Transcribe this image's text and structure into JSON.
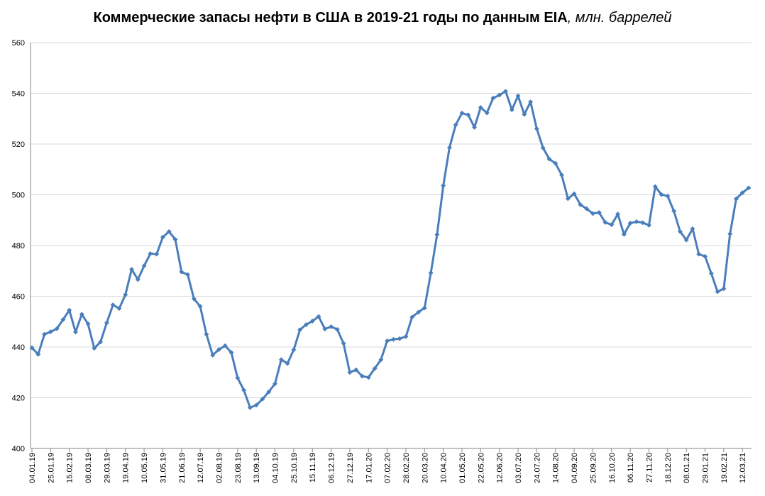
{
  "colors": {
    "series": "#4A7EBB",
    "grid": "#D9D9D9",
    "axis": "#868686"
  },
  "chart_data": {
    "type": "line",
    "title": "Коммерческие запасы нефти в США в 2019-21 годы по данным EIA",
    "title_unit": ", млн. баррелей",
    "xlabel": "",
    "ylabel": "",
    "ylim": [
      400,
      560
    ],
    "yticks": [
      400,
      420,
      440,
      460,
      480,
      500,
      520,
      540,
      560
    ],
    "grid": true,
    "legend": "none",
    "xtick_labels": [
      "04.01.19",
      "25.01.19",
      "15.02.19",
      "08.03.19",
      "29.03.19",
      "19.04.19",
      "10.05.19",
      "31.05.19",
      "21.06.19",
      "12.07.19",
      "02.08.19",
      "23.08.19",
      "13.09.19",
      "04.10.19",
      "25.10.19",
      "15.11.19",
      "06.12.19",
      "27.12.19",
      "17.01.20",
      "07.02.20",
      "28.02.20",
      "20.03.20",
      "10.04.20",
      "01.05.20",
      "22.05.20",
      "12.06.20",
      "03.07.20",
      "24.07.20",
      "14.08.20",
      "04.09.20",
      "25.09.20",
      "16.10.20",
      "06.11.20",
      "27.11.20",
      "18.12.20",
      "08.01.21",
      "29.01.21",
      "19.02.21",
      "12.03.21"
    ],
    "xtick_step": 3,
    "series": [
      {
        "values": [
          439.7,
          437.1,
          445.0,
          446.0,
          447.2,
          450.8,
          454.5,
          445.9,
          452.9,
          449.1,
          439.5,
          442.0,
          449.5,
          456.6,
          455.2,
          460.6,
          470.6,
          466.6,
          472.0,
          476.8,
          476.6,
          483.3,
          485.5,
          482.4,
          469.6,
          468.5,
          459.0,
          456.0,
          445.0,
          436.8,
          439.0,
          440.5,
          437.8,
          427.8,
          423.0,
          416.1,
          417.1,
          419.5,
          422.3,
          425.5,
          435.0,
          433.5,
          438.9,
          446.8,
          448.8,
          450.2,
          452.0,
          447.1,
          448.0,
          446.9,
          441.4,
          430.0,
          431.0,
          428.5,
          428.0,
          431.5,
          435.0,
          442.4,
          443.0,
          443.3,
          444.1,
          451.8,
          453.7,
          455.4,
          469.2,
          484.3,
          503.6,
          518.6,
          527.6,
          532.2,
          531.5,
          526.6,
          534.4,
          532.3,
          538.1,
          539.3,
          540.8,
          533.5,
          539.0,
          531.7,
          536.6,
          526.0,
          518.5,
          514.1,
          512.4,
          507.8,
          498.5,
          500.4,
          496.1,
          494.5,
          492.6,
          493.0,
          489.1,
          488.2,
          492.4,
          484.4,
          488.8,
          489.4,
          489.0,
          488.0,
          503.2,
          500.1,
          499.5,
          493.6,
          485.5,
          482.2,
          486.6,
          476.6,
          475.7,
          469.0,
          461.8,
          463.0,
          484.6,
          498.4,
          500.8,
          502.7
        ]
      }
    ]
  }
}
